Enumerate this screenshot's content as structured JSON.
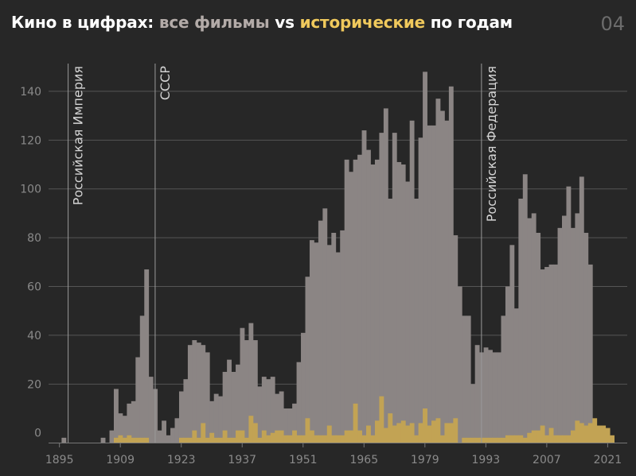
{
  "header": {
    "title_part1": "Кино в цифрах: ",
    "title_all": "все фильмы",
    "title_vs": " vs ",
    "title_hist": "исторические",
    "title_part2": " по годам",
    "page_number": "04"
  },
  "colors": {
    "background": "#272727",
    "all_films": "#8b8584",
    "historical": "#c2a354",
    "grid": "#555555",
    "axis_text": "#8a8a8a",
    "era_text": "#d4d4d4"
  },
  "chart_data": {
    "type": "bar",
    "title": "Кино в цифрах: все фильмы vs исторические по годам",
    "x_range": [
      1893,
      2025
    ],
    "ylim": [
      -4,
      152
    ],
    "x_ticks": [
      1895,
      1909,
      1923,
      1937,
      1951,
      1965,
      1979,
      1993,
      2007,
      2021
    ],
    "y_ticks": [
      0,
      20,
      40,
      60,
      80,
      100,
      120,
      140
    ],
    "grid": true,
    "eras": [
      {
        "year": 1897,
        "label": "Российская Империя"
      },
      {
        "year": 1917,
        "label": "СССР"
      },
      {
        "year": 1992,
        "label": "Российская Федерация"
      }
    ],
    "series": [
      {
        "key": "all",
        "start_year": 1893,
        "values": [
          -4,
          -4,
          -4,
          -2,
          -4,
          -4,
          -4,
          -4,
          -4,
          -4,
          -4,
          -4,
          -2,
          -4,
          1,
          18,
          8,
          7,
          12,
          13,
          31,
          48,
          67,
          23,
          18,
          1,
          5,
          -1,
          2,
          6,
          17,
          22,
          36,
          38,
          37,
          36,
          33,
          13,
          16,
          15,
          25,
          30,
          25,
          28,
          43,
          38,
          45,
          38,
          19,
          23,
          22,
          23,
          16,
          17,
          10,
          10,
          12,
          29,
          41,
          64,
          79,
          78,
          87,
          92,
          77,
          82,
          74,
          83,
          112,
          107,
          112,
          114,
          124,
          116,
          110,
          112,
          123,
          133,
          96,
          123,
          111,
          110,
          103,
          128,
          96,
          121,
          148,
          126,
          126,
          137,
          132,
          128,
          142,
          81,
          60,
          48,
          48,
          20,
          36,
          33,
          35,
          34,
          33,
          33,
          48,
          60,
          77,
          51,
          96,
          106,
          88,
          90,
          82,
          67,
          68,
          69,
          69,
          84,
          89,
          101,
          84,
          90,
          105,
          82,
          69
        ],
        "color": "#8b8584"
      },
      {
        "key": "historical",
        "start_year": 1893,
        "values": [
          -4,
          -4,
          -4,
          -4,
          -4,
          -4,
          -4,
          -4,
          -4,
          -4,
          -4,
          -4,
          -4,
          -4,
          -4,
          -2,
          -1,
          -2,
          -1,
          -2,
          -2,
          -2,
          -2,
          -4,
          -4,
          -4,
          -4,
          -4,
          -4,
          -4,
          -2,
          -2,
          -2,
          1,
          -2,
          4,
          -2,
          0,
          -2,
          -2,
          1,
          -2,
          -2,
          1,
          1,
          -2,
          7,
          4,
          -2,
          1,
          -1,
          0,
          1,
          1,
          -1,
          -1,
          1,
          -1,
          -1,
          6,
          1,
          -1,
          -1,
          -1,
          3,
          -1,
          -1,
          -1,
          1,
          1,
          12,
          1,
          -1,
          3,
          -1,
          5,
          15,
          2,
          8,
          3,
          4,
          5,
          3,
          4,
          -1,
          4,
          10,
          3,
          5,
          6,
          -1,
          4,
          4,
          6,
          -4,
          -2,
          -2,
          -2,
          -2,
          -2,
          -2,
          -2,
          -2,
          -2,
          -2,
          -1,
          -1,
          -1,
          -1,
          -2,
          0,
          1,
          1,
          3,
          -1,
          2,
          -1,
          -1,
          -1,
          -1,
          1,
          5,
          4,
          3,
          4,
          6,
          3,
          3,
          2,
          -1
        ],
        "color": "#c2a354"
      }
    ]
  }
}
